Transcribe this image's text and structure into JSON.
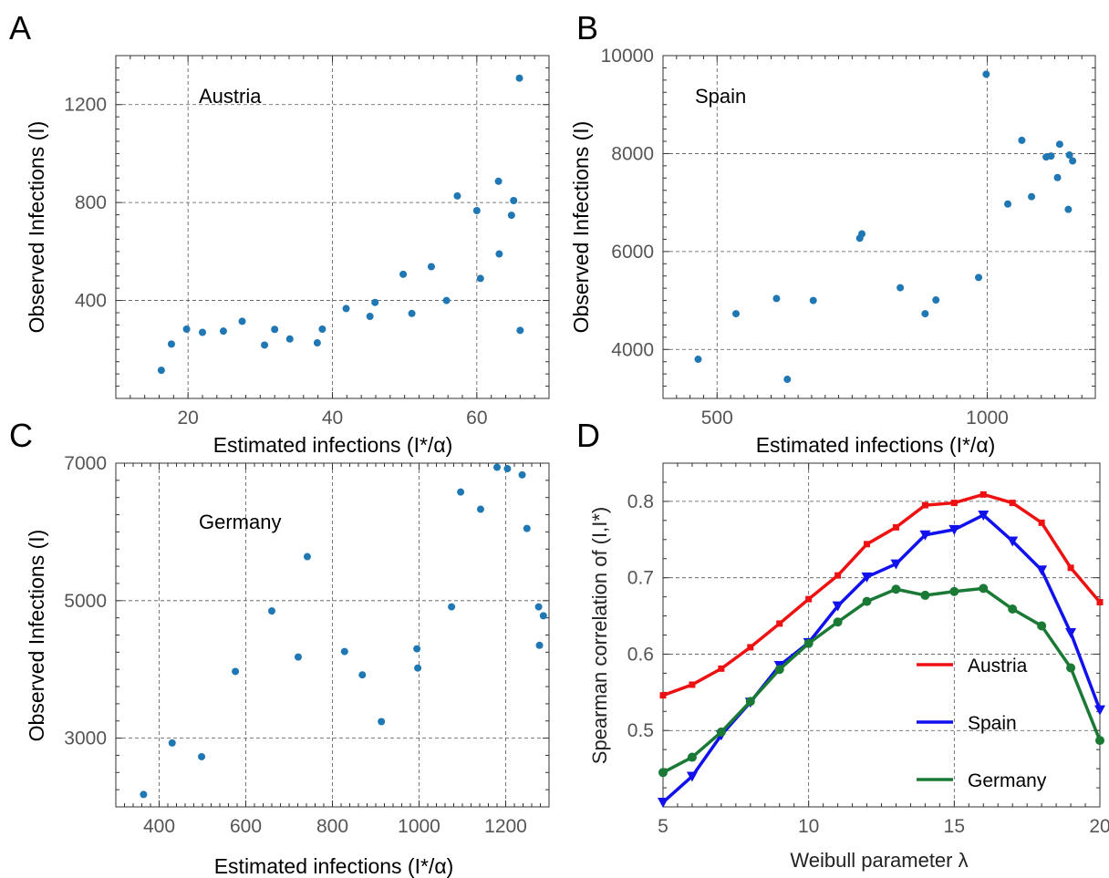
{
  "panels": {
    "A": "A",
    "B": "B",
    "C": "C",
    "D": "D"
  },
  "chart_data": [
    {
      "type": "scatter",
      "panel": "A",
      "annotation": "Austria",
      "xlabel": "Estimated infections (I*/α)",
      "ylabel": "Observed Infections (I)",
      "xlim": [
        10,
        70
      ],
      "ylim": [
        0,
        1400
      ],
      "xticks": [
        20,
        40,
        60
      ],
      "yticks": [
        400,
        800,
        1200
      ],
      "grid": true,
      "color": "#1f77b4",
      "x": [
        16.3,
        17.7,
        19.8,
        22,
        24.9,
        27.5,
        30.6,
        32,
        34.1,
        37.9,
        38.6,
        41.9,
        45.2,
        45.9,
        49.8,
        51,
        53.7,
        55.8,
        57.3,
        60,
        60.5,
        63,
        63.1,
        64.8,
        65.1,
        65.9,
        66
      ],
      "y": [
        115,
        222,
        283,
        270,
        275,
        315,
        218,
        282,
        243,
        227,
        283,
        367,
        335,
        392,
        507,
        347,
        538,
        400,
        827,
        767,
        490,
        887,
        590,
        748,
        808,
        1308,
        278
      ]
    },
    {
      "type": "scatter",
      "panel": "B",
      "annotation": "Spain",
      "xlabel": "Estimated infections (I*/α)",
      "ylabel": "Observed Infections (I)",
      "xlim": [
        400,
        1200
      ],
      "ylim": [
        3000,
        10000
      ],
      "xticks": [
        500,
        1000
      ],
      "yticks": [
        4000,
        6000,
        8000,
        10000
      ],
      "grid": true,
      "color": "#1f77b4",
      "x": [
        465,
        535,
        610,
        630,
        678,
        764,
        768,
        839,
        885,
        905,
        984,
        998,
        1038,
        1064,
        1082,
        1109,
        1118,
        1130,
        1134,
        1150,
        1152,
        1158
      ],
      "y": [
        3800,
        4730,
        5040,
        3390,
        5000,
        6270,
        6360,
        5260,
        4730,
        5010,
        5470,
        9620,
        6970,
        8270,
        7120,
        7930,
        7950,
        7510,
        8190,
        6860,
        7970,
        7850
      ]
    },
    {
      "type": "scatter",
      "panel": "C",
      "annotation": "Germany",
      "xlabel": "Estimated infections (I*/α)",
      "ylabel": "Observed Infections (I)",
      "xlim": [
        300,
        1300
      ],
      "ylim": [
        2000,
        7000
      ],
      "xticks": [
        400,
        600,
        800,
        1000,
        1200
      ],
      "yticks": [
        3000,
        5000,
        7000
      ],
      "grid": true,
      "color": "#1f77b4",
      "x": [
        364,
        430,
        498,
        576,
        660,
        721,
        742,
        828,
        869,
        913,
        995,
        997,
        1075,
        1096,
        1142,
        1180,
        1204,
        1238,
        1249,
        1276,
        1278,
        1287
      ],
      "y": [
        2180,
        2930,
        2730,
        3970,
        4850,
        4180,
        5640,
        4260,
        3920,
        3240,
        4300,
        4020,
        4910,
        6580,
        6330,
        6940,
        6920,
        6830,
        6050,
        4910,
        4350,
        4780
      ]
    },
    {
      "type": "line",
      "panel": "D",
      "xlabel": "Weibull parameter λ",
      "ylabel": "Spearman correlation of (I,I*)",
      "xlim": [
        5,
        20
      ],
      "ylim": [
        0.4,
        0.85
      ],
      "xticks": [
        5,
        10,
        15,
        20
      ],
      "yticks": [
        0.5,
        0.6,
        0.7,
        0.8
      ],
      "grid": true,
      "legend_position": "lower-right",
      "x": [
        5,
        6,
        7,
        8,
        9,
        10,
        11,
        12,
        13,
        14,
        15,
        16,
        17,
        18,
        19,
        20
      ],
      "series": [
        {
          "name": "Austria",
          "color": "#ee1111",
          "marker": "square",
          "values": [
            0.546,
            0.56,
            0.581,
            0.609,
            0.64,
            0.672,
            0.703,
            0.744,
            0.766,
            0.795,
            0.798,
            0.809,
            0.798,
            0.772,
            0.713,
            0.668
          ]
        },
        {
          "name": "Spain",
          "color": "#1111ee",
          "marker": "triangle-down",
          "values": [
            0.406,
            0.44,
            0.494,
            0.537,
            0.585,
            0.615,
            0.663,
            0.701,
            0.718,
            0.756,
            0.763,
            0.782,
            0.748,
            0.71,
            0.628,
            0.527
          ]
        },
        {
          "name": "Germany",
          "color": "#1a7a35",
          "marker": "circle",
          "values": [
            0.445,
            0.465,
            0.498,
            0.538,
            0.58,
            0.614,
            0.642,
            0.669,
            0.685,
            0.677,
            0.682,
            0.686,
            0.659,
            0.637,
            0.582,
            0.487
          ]
        }
      ]
    }
  ]
}
